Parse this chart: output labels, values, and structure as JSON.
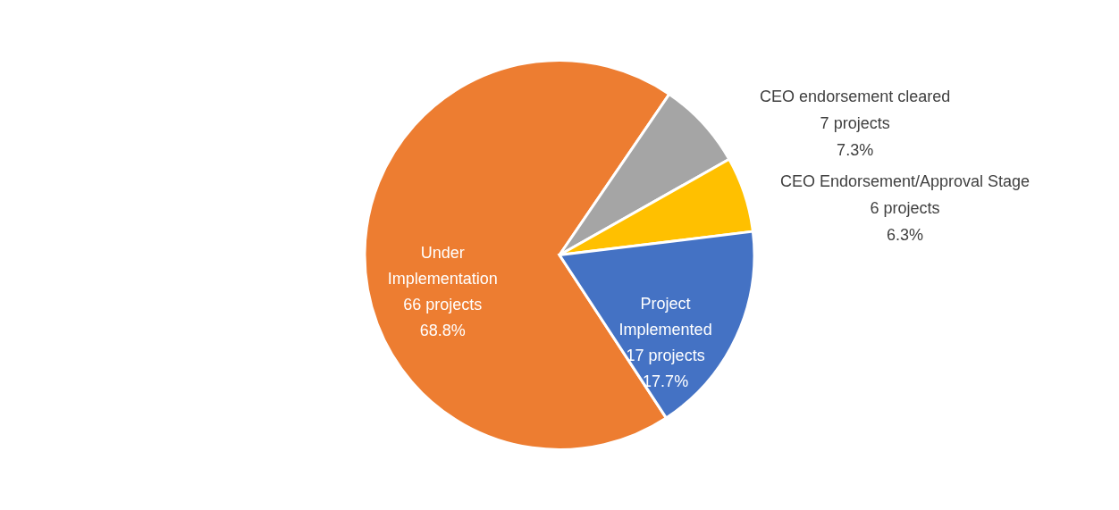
{
  "chart_data": {
    "type": "pie",
    "categories": [
      "Under Implementation",
      "CEO endorsement cleared",
      "CEO Endorsement/Approval Stage",
      "Project Implemented"
    ],
    "values": [
      66,
      7,
      6,
      17
    ],
    "colors": [
      "#ed7d31",
      "#a5a5a5",
      "#ffc000",
      "#4472c4"
    ],
    "value_labels": [
      "66 projects\n68.8%",
      "7 projects\n7.3%",
      "6 projects\n6.3%",
      "17 projects\n17.7%"
    ]
  }
}
